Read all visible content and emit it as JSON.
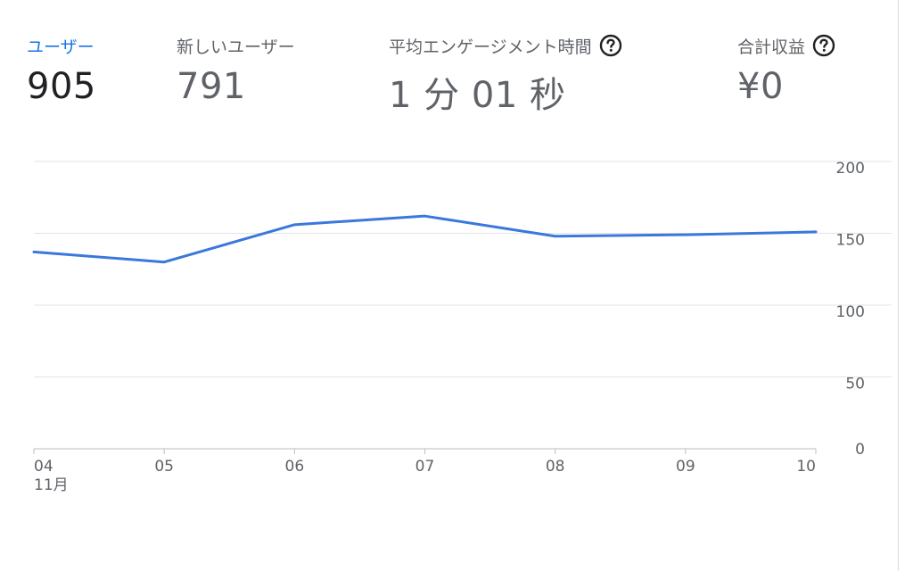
{
  "metrics": {
    "users": {
      "label": "ユーザー",
      "value": "905"
    },
    "new_users": {
      "label": "新しいユーザー",
      "value": "791"
    },
    "avg_engagement": {
      "label": "平均エンゲージメント時間",
      "value": "1 分 01 秒"
    },
    "total_revenue": {
      "label": "合計収益",
      "value": "¥0"
    }
  },
  "icons": {
    "help": "help-circle-icon"
  },
  "colors": {
    "accent": "#1a73e8",
    "line": "#3b78dc",
    "grid": "#e3e3e3",
    "text_muted": "#5f6368",
    "text_dark": "#202124"
  },
  "chart_data": {
    "type": "line",
    "x": [
      "04",
      "05",
      "06",
      "07",
      "08",
      "09",
      "10"
    ],
    "x_sublabel": "11月",
    "series": [
      {
        "values": [
          137,
          130,
          156,
          162,
          148,
          149,
          151
        ]
      }
    ],
    "ylim": [
      0,
      200
    ],
    "yticks": [
      0,
      50,
      100,
      150,
      200
    ],
    "y_axis_side": "right",
    "grid": true
  }
}
